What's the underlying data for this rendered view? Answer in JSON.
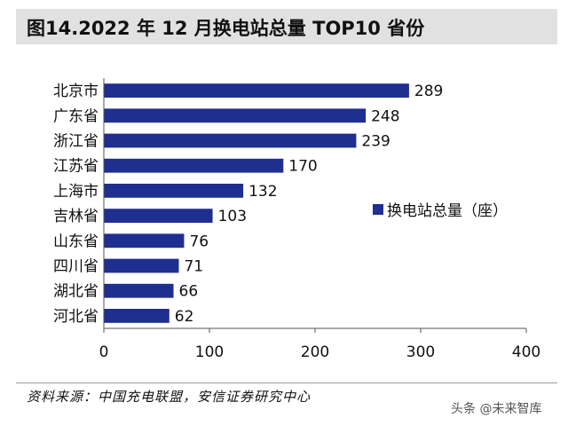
{
  "title": "图14.2022 年 12 月换电站总量 TOP10 省份",
  "source": "资料来源：中国充电联盟，安信证券研究中心",
  "watermark": "头条 @未来智库",
  "colors": {
    "bar": "#1f2f8f",
    "title_bg": "#e1e1e1",
    "axis": "#555555"
  },
  "chart_data": {
    "type": "bar",
    "orientation": "horizontal",
    "categories": [
      "北京市",
      "广东省",
      "浙江省",
      "江苏省",
      "上海市",
      "吉林省",
      "山东省",
      "四川省",
      "湖北省",
      "河北省"
    ],
    "series": [
      {
        "name": "换电站总量（座）",
        "values": [
          289,
          248,
          239,
          170,
          132,
          103,
          76,
          71,
          66,
          62
        ]
      }
    ],
    "xlim": [
      0,
      400
    ],
    "xticks": [
      0,
      100,
      200,
      300,
      400
    ],
    "xlabel": "",
    "ylabel": "",
    "grid": false,
    "legend": "right"
  }
}
